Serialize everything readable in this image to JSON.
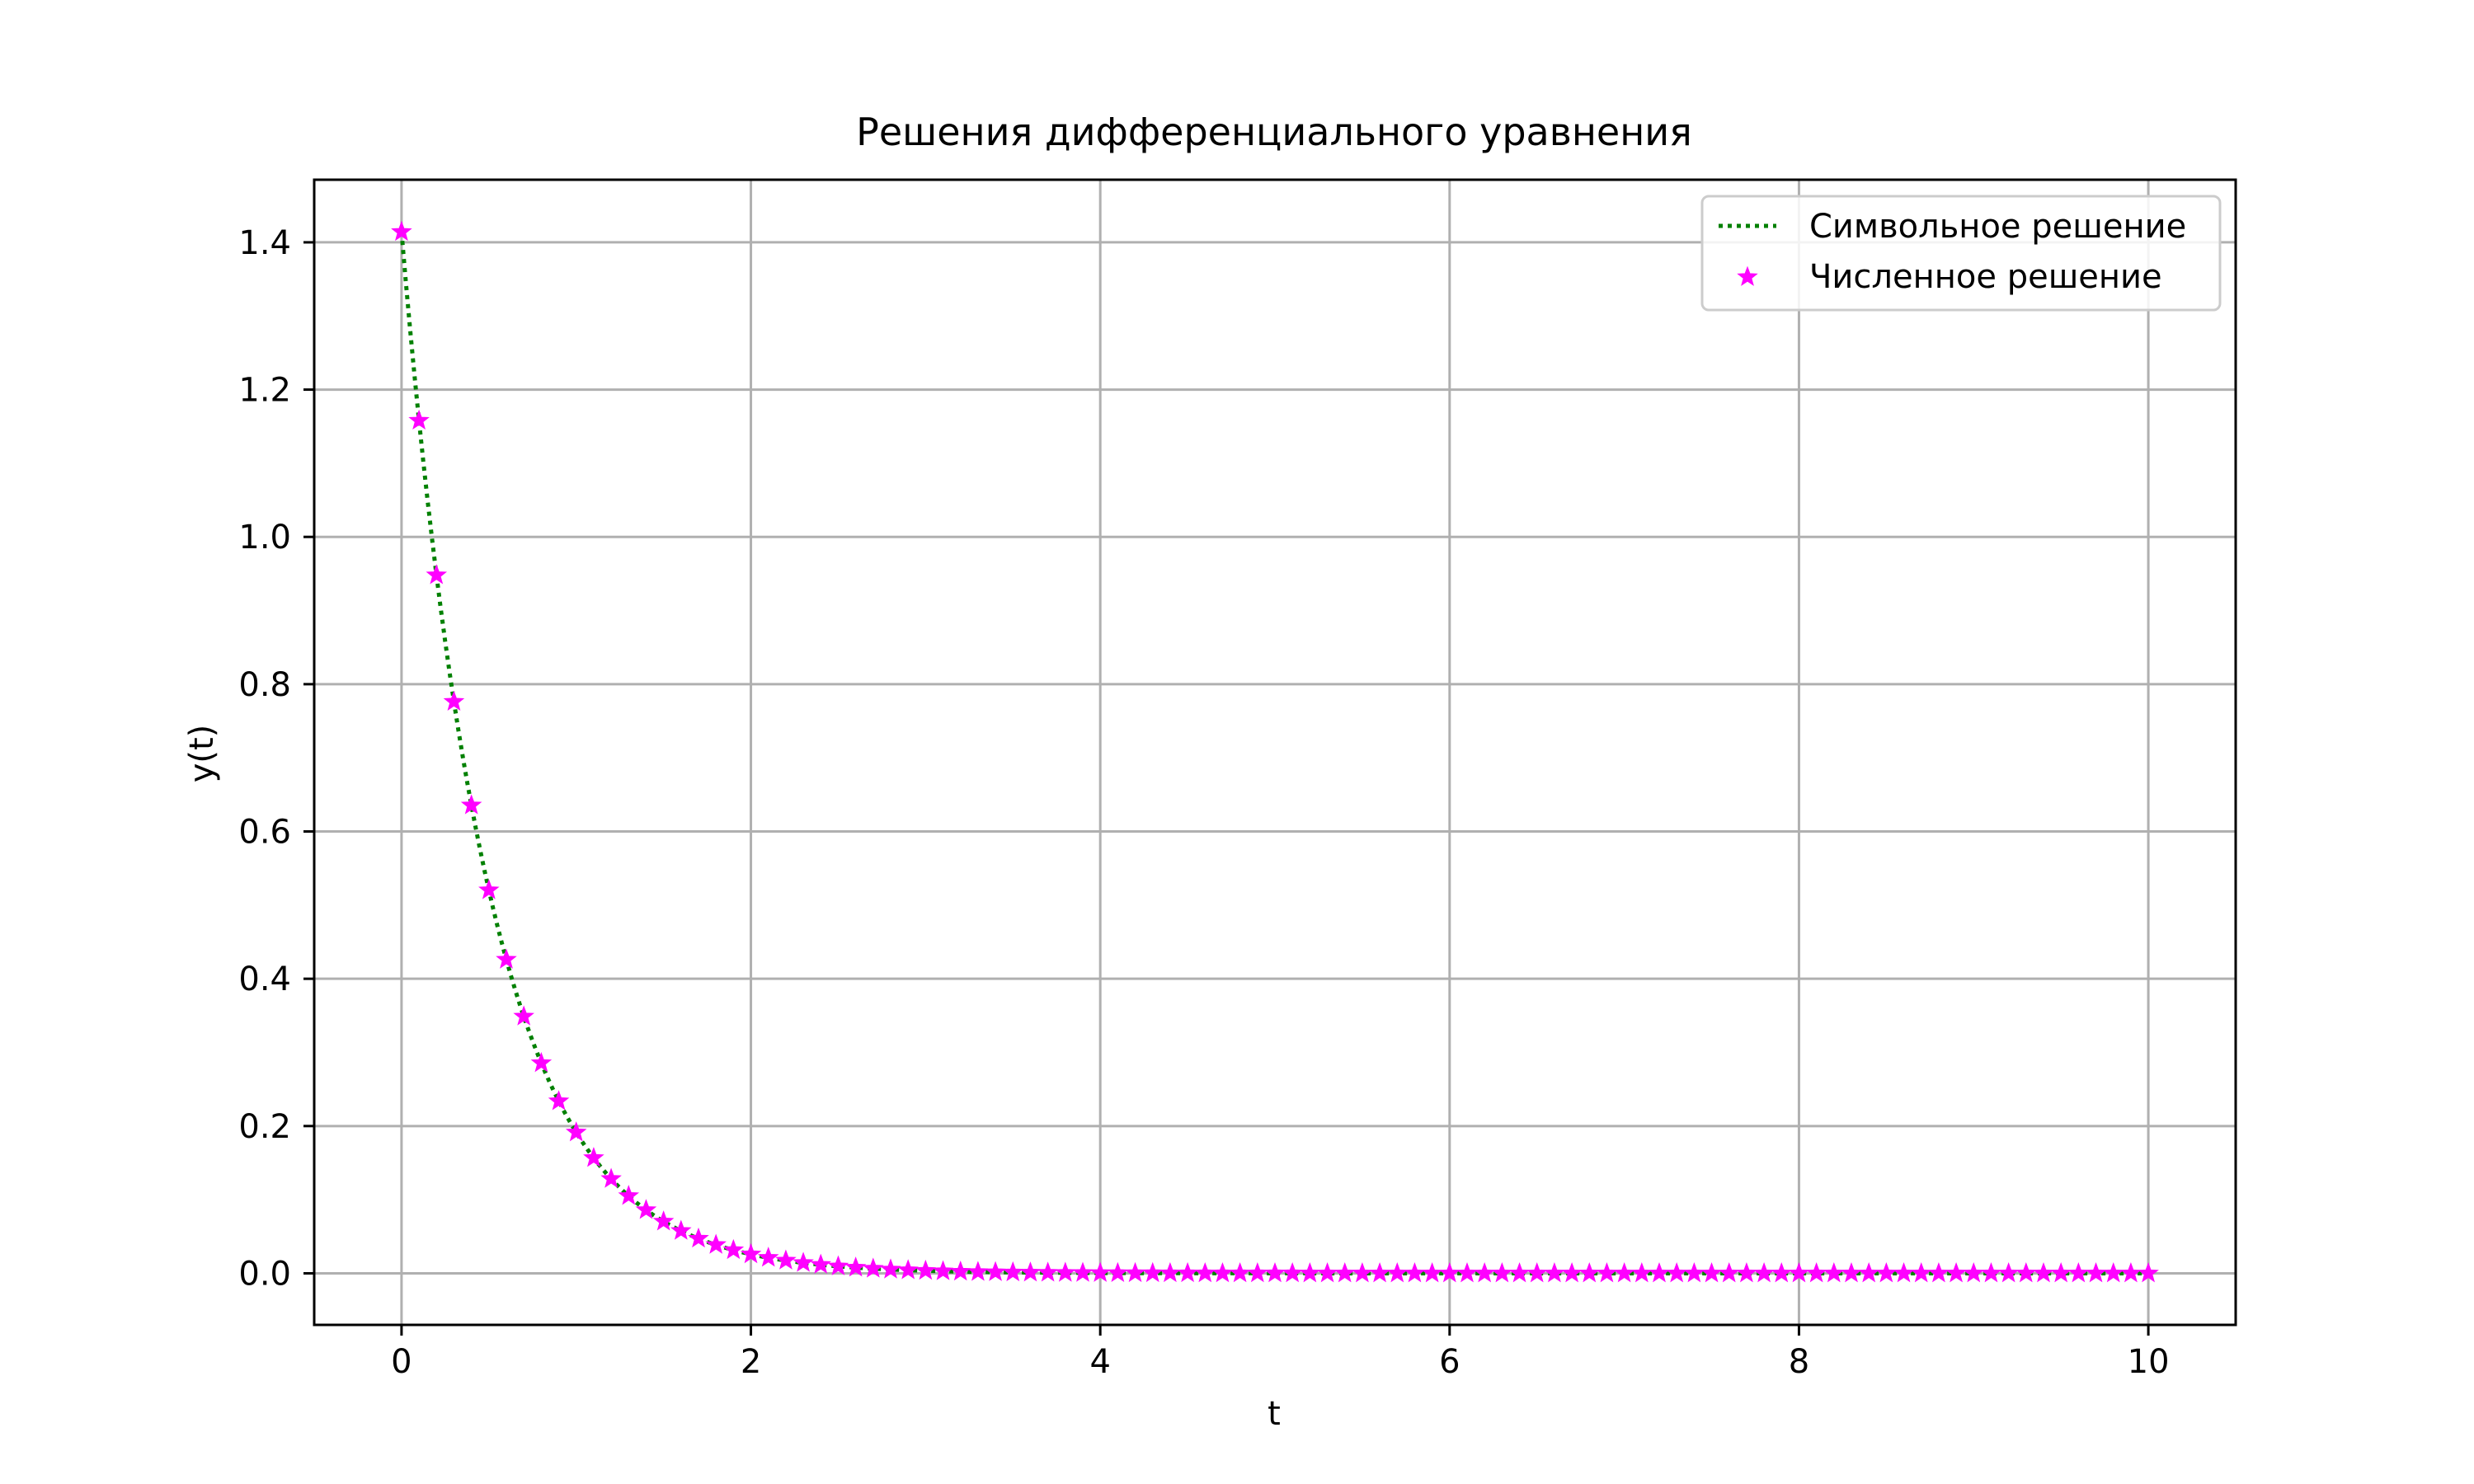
{
  "chart_data": {
    "type": "line",
    "title": "Решения дифференциального уравнения",
    "xlabel": "t",
    "ylabel": "y(t)",
    "xlim": [
      -0.5,
      10.5
    ],
    "ylim": [
      -0.07,
      1.485
    ],
    "xticks": [
      0,
      2,
      4,
      6,
      8,
      10
    ],
    "xtick_labels": [
      "0",
      "2",
      "4",
      "6",
      "8",
      "10"
    ],
    "yticks": [
      0.0,
      0.2,
      0.4,
      0.6,
      0.8,
      1.0,
      1.2,
      1.4
    ],
    "ytick_labels": [
      "0.0",
      "0.2",
      "0.4",
      "0.6",
      "0.8",
      "1.0",
      "1.2",
      "1.4"
    ],
    "grid": true,
    "legend_position": "upper right",
    "series": [
      {
        "name": "Символьное решение",
        "kind": "line",
        "style": "dotted",
        "color": "#008000",
        "function": "y = 1.4142 * exp(-2 t)",
        "x_range": [
          0,
          10
        ]
      },
      {
        "name": "Численное решение",
        "kind": "scatter",
        "marker": "star",
        "color": "#ff00ff",
        "x": [
          0,
          0.1,
          0.2,
          0.3,
          0.4,
          0.5,
          0.6,
          0.7,
          0.8,
          0.9,
          1.0,
          1.1,
          1.2,
          1.3,
          1.4,
          1.5,
          1.6,
          1.7,
          1.8,
          1.9,
          2.0,
          2.1,
          2.2,
          2.3,
          2.4,
          2.5,
          2.6,
          2.7,
          2.8,
          2.9,
          3.0,
          3.1,
          3.2,
          3.3,
          3.4,
          3.5,
          3.6,
          3.7,
          3.8,
          3.9,
          4.0,
          4.1,
          4.2,
          4.3,
          4.4,
          4.5,
          4.6,
          4.7,
          4.8,
          4.9,
          5.0,
          5.1,
          5.2,
          5.3,
          5.4,
          5.5,
          5.6,
          5.7,
          5.8,
          5.9,
          6.0,
          6.1,
          6.2,
          6.3,
          6.4,
          6.5,
          6.6,
          6.7,
          6.8,
          6.9,
          7.0,
          7.1,
          7.2,
          7.3,
          7.4,
          7.5,
          7.6,
          7.7,
          7.8,
          7.9,
          8.0,
          8.1,
          8.2,
          8.3,
          8.4,
          8.5,
          8.6,
          8.7,
          8.8,
          8.9,
          9.0,
          9.1,
          9.2,
          9.3,
          9.4,
          9.5,
          9.6,
          9.7,
          9.8,
          9.9,
          10.0
        ],
        "y": [
          1.4142,
          1.1579,
          0.948,
          0.7762,
          0.6355,
          0.5203,
          0.426,
          0.3488,
          0.2855,
          0.2338,
          0.1914,
          0.1567,
          0.1283,
          0.1051,
          0.086,
          0.0704,
          0.0577,
          0.0472,
          0.0387,
          0.0316,
          0.0259,
          0.0212,
          0.0174,
          0.0142,
          0.0117,
          0.0095,
          0.0078,
          0.0064,
          0.0052,
          0.0043,
          0.0035,
          0.0029,
          0.0023,
          0.0019,
          0.0016,
          0.0013,
          0.0011,
          0.0009,
          0.0007,
          0.0006,
          0.0005,
          0.0004,
          0.0003,
          0.0003,
          0.0002,
          0.0002,
          0.0001,
          0.0001,
          0.0001,
          0.0001,
          0.0001,
          0.0001,
          0.0,
          0.0,
          0.0,
          0.0,
          0.0,
          0.0,
          0.0,
          0.0,
          0.0,
          0.0,
          0.0,
          0.0,
          0.0,
          0.0,
          0.0,
          0.0,
          0.0,
          0.0,
          0.0,
          0.0,
          0.0,
          0.0,
          0.0,
          0.0,
          0.0,
          0.0,
          0.0,
          0.0,
          0.0,
          0.0,
          0.0,
          0.0,
          0.0,
          0.0,
          0.0,
          0.0,
          0.0,
          0.0,
          0.0,
          0.0,
          0.0,
          0.0,
          0.0,
          0.0,
          0.0,
          0.0,
          0.0,
          0.0,
          0.0
        ]
      }
    ]
  }
}
